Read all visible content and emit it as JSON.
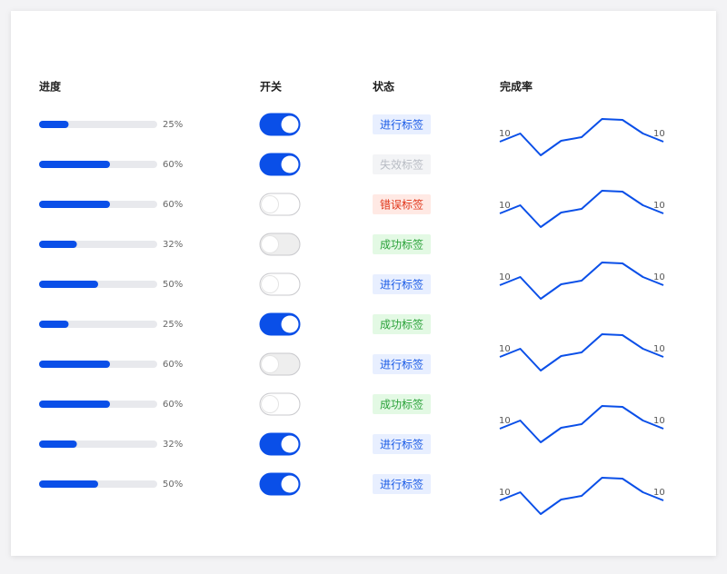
{
  "table": {
    "columns": [
      "进度",
      "开关",
      "状态",
      "完成率"
    ],
    "rows": [
      {
        "progress": 25,
        "progress_label": "25%",
        "switch": "on",
        "tag": {
          "text": "进行标签",
          "type": "processing"
        }
      },
      {
        "progress": 60,
        "progress_label": "60%",
        "switch": "on",
        "tag": {
          "text": "失效标签",
          "type": "default"
        }
      },
      {
        "progress": 60,
        "progress_label": "60%",
        "switch": "off",
        "tag": {
          "text": "错误标签",
          "type": "error"
        }
      },
      {
        "progress": 32,
        "progress_label": "32%",
        "switch": "disabled",
        "tag": {
          "text": "成功标签",
          "type": "success"
        }
      },
      {
        "progress": 50,
        "progress_label": "50%",
        "switch": "off",
        "tag": {
          "text": "进行标签",
          "type": "processing"
        }
      },
      {
        "progress": 25,
        "progress_label": "25%",
        "switch": "on",
        "tag": {
          "text": "成功标签",
          "type": "success"
        }
      },
      {
        "progress": 60,
        "progress_label": "60%",
        "switch": "disabled",
        "tag": {
          "text": "进行标签",
          "type": "processing"
        }
      },
      {
        "progress": 60,
        "progress_label": "60%",
        "switch": "off",
        "tag": {
          "text": "成功标签",
          "type": "success"
        }
      },
      {
        "progress": 32,
        "progress_label": "32%",
        "switch": "on",
        "tag": {
          "text": "进行标签",
          "type": "processing"
        }
      },
      {
        "progress": 50,
        "progress_label": "50%",
        "switch": "on",
        "tag": {
          "text": "进行标签",
          "type": "processing"
        }
      }
    ],
    "sparklines": [
      [
        10,
        14.5,
        2.5,
        10.5,
        12.5,
        22.5,
        22,
        14.5,
        10
      ],
      [
        10,
        14.5,
        2.5,
        10.5,
        12.5,
        22.5,
        22,
        14.5,
        10
      ],
      [
        10,
        14.5,
        2.5,
        10.5,
        12.5,
        22.5,
        22,
        14.5,
        10
      ],
      [
        10,
        14.5,
        2.5,
        10.5,
        12.5,
        22.5,
        22,
        14.5,
        10
      ],
      [
        10,
        14.5,
        2.5,
        10.5,
        12.5,
        22.5,
        22,
        14.5,
        10
      ],
      [
        10,
        14.5,
        2.5,
        10.5,
        12.5,
        22.5,
        22,
        14.5,
        10
      ]
    ]
  }
}
